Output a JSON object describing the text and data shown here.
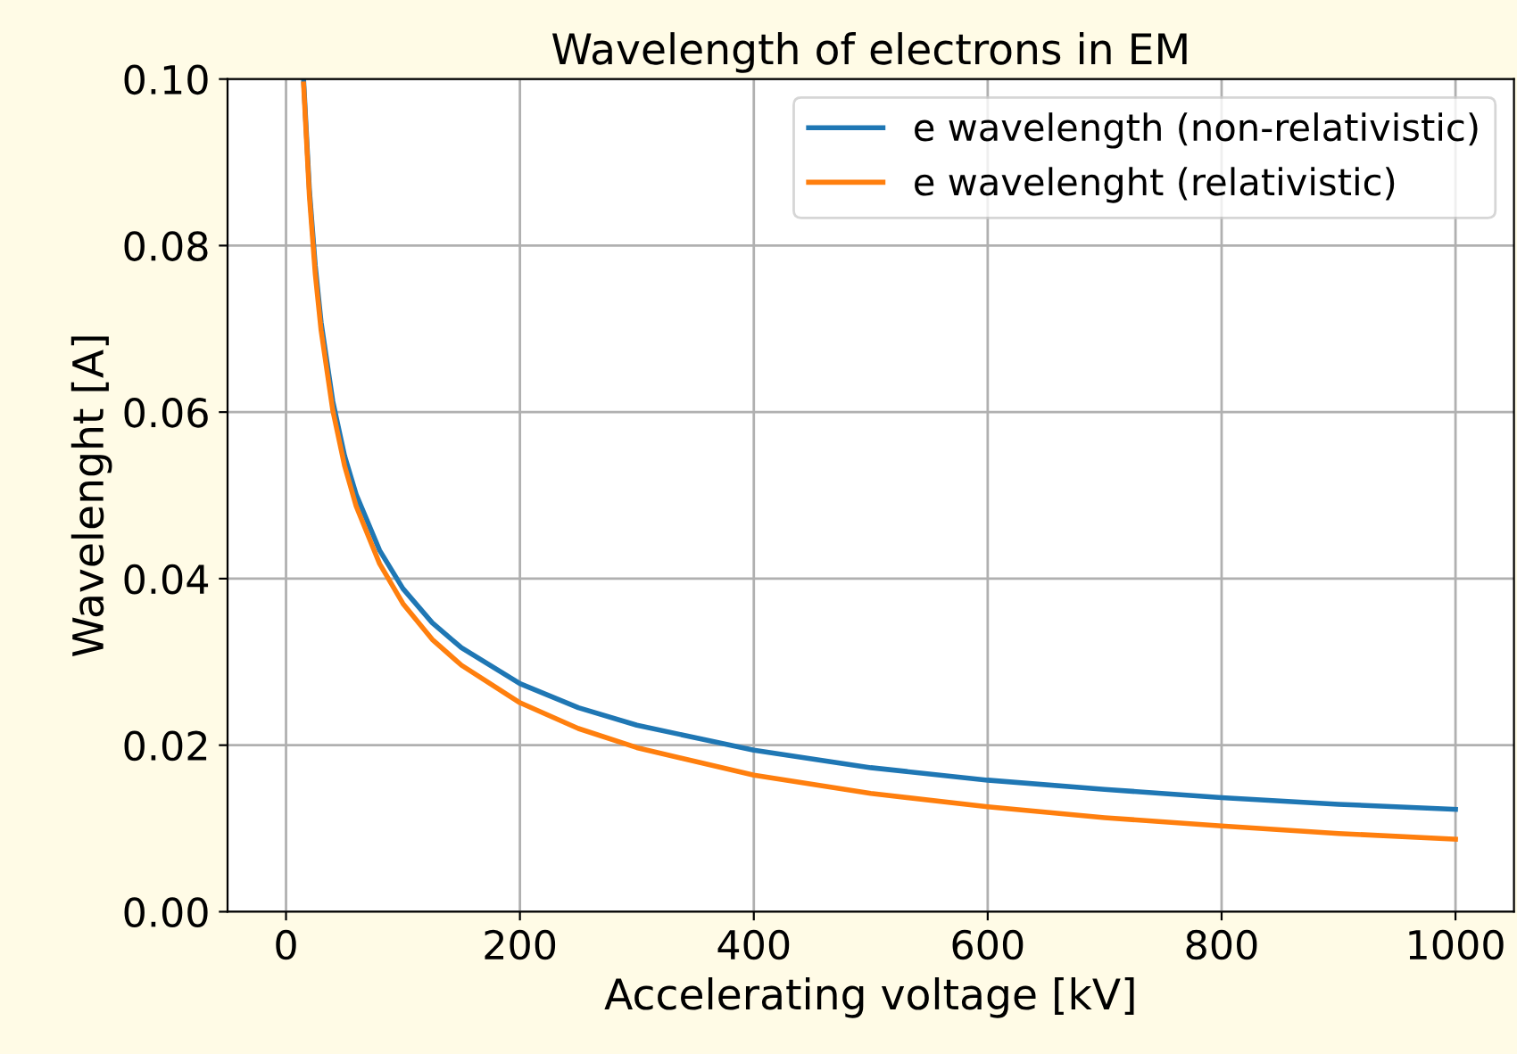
{
  "chart_data": {
    "type": "line",
    "title": "Wavelength of electrons in EM",
    "xlabel": "Accelerating voltage [kV]",
    "ylabel": "Wavelenght [A]",
    "x": [
      15,
      20,
      25,
      30,
      40,
      50,
      60,
      80,
      100,
      125,
      150,
      200,
      250,
      300,
      400,
      500,
      600,
      700,
      800,
      900,
      1000
    ],
    "series": [
      {
        "name": "e wavelength (non-relativistic)",
        "color": "#1f77b4",
        "values": [
          0.1,
          0.0867,
          0.0776,
          0.0708,
          0.0613,
          0.0548,
          0.0501,
          0.0434,
          0.0388,
          0.0347,
          0.0317,
          0.0274,
          0.0245,
          0.0224,
          0.0194,
          0.0173,
          0.0158,
          0.0147,
          0.0137,
          0.0129,
          0.0123
        ]
      },
      {
        "name": "e wavelenght (relativistic)",
        "color": "#ff7f0e",
        "values": [
          0.0994,
          0.0859,
          0.0766,
          0.0698,
          0.0602,
          0.0536,
          0.0487,
          0.0418,
          0.037,
          0.0327,
          0.0296,
          0.0251,
          0.022,
          0.0197,
          0.0164,
          0.0142,
          0.0126,
          0.0113,
          0.0103,
          0.0094,
          0.0087
        ]
      }
    ],
    "xlim": [
      -50,
      1050
    ],
    "xticks": [
      0,
      200,
      400,
      600,
      800,
      1000
    ],
    "ylim": [
      0,
      0.1
    ],
    "yticks": [
      {
        "value": 0,
        "label": "0.00"
      },
      {
        "value": 0.02,
        "label": "0.02"
      },
      {
        "value": 0.04,
        "label": "0.04"
      },
      {
        "value": 0.06,
        "label": "0.06"
      },
      {
        "value": 0.08,
        "label": "0.08"
      },
      {
        "value": 0.1,
        "label": "0.10"
      }
    ],
    "grid": true,
    "legend": "top right",
    "marker": "none",
    "line_style": "solid"
  }
}
